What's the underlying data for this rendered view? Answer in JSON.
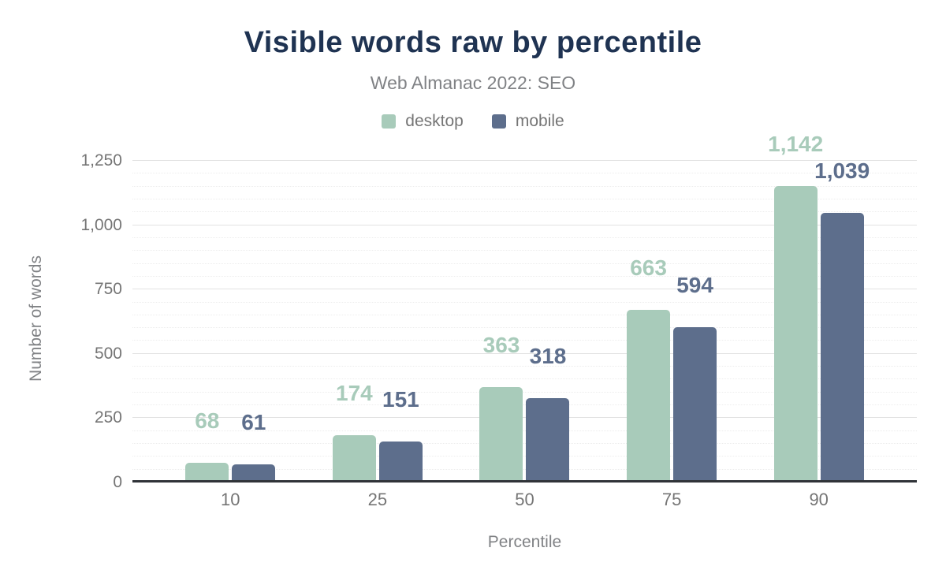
{
  "chart_data": {
    "type": "bar",
    "title": "Visible words raw by percentile",
    "subtitle": "Web Almanac 2022: SEO",
    "xlabel": "Percentile",
    "ylabel": "Number of words",
    "categories": [
      "10",
      "25",
      "50",
      "75",
      "90"
    ],
    "series": [
      {
        "name": "desktop",
        "color": "#a8cbba",
        "values": [
          68,
          174,
          363,
          663,
          1142
        ],
        "labels": [
          "68",
          "174",
          "363",
          "663",
          "1,142"
        ]
      },
      {
        "name": "mobile",
        "color": "#5d6e8c",
        "values": [
          61,
          151,
          318,
          594,
          1039
        ],
        "labels": [
          "61",
          "151",
          "318",
          "594",
          "1,039"
        ]
      }
    ],
    "ylim": [
      0,
      1250
    ],
    "yticks": [
      {
        "value": 0,
        "label": "0"
      },
      {
        "value": 250,
        "label": "250"
      },
      {
        "value": 500,
        "label": "500"
      },
      {
        "value": 750,
        "label": "750"
      },
      {
        "value": 1000,
        "label": "1,000"
      },
      {
        "value": 1250,
        "label": "1,250"
      }
    ],
    "grid": {
      "minor_step": 50,
      "major_step": 250,
      "minor_style": "dotted",
      "major_style": "solid"
    },
    "legend_position": "top",
    "colors": {
      "title": "#1f3352",
      "subtitle": "#808285",
      "tick_text": "#757575",
      "axis_line": "#303338",
      "grid_minor": "#ededed",
      "grid_major": "#e2e2e2",
      "background": "#ffffff"
    }
  }
}
